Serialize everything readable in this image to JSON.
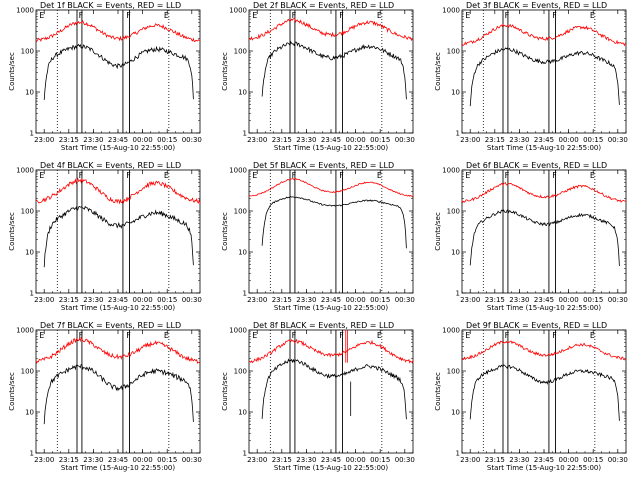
{
  "chart_data": {
    "type": "line",
    "yscale": "log",
    "ylim": [
      1,
      1000
    ],
    "ylabel": "Counts/sec",
    "xlabel": "Start Time (15-Aug-10 22:55:00)",
    "xlim_minutes": [
      0,
      100
    ],
    "x_ticks": [
      "23:00",
      "23:15",
      "23:30",
      "23:45",
      "00:00",
      "00:15",
      "00:30"
    ],
    "y_ticks": [
      "1",
      "10",
      "100",
      "1000"
    ],
    "series_colors": {
      "events": "#000000",
      "lld": "#ff0000"
    },
    "panels": [
      {
        "title": "Det 1f BLACK = Events, RED = LLD",
        "labels": [
          "E",
          "F",
          "F",
          "E"
        ],
        "events_start": 5,
        "events_end": 96,
        "ev_base": 60,
        "ev_peak1": 130,
        "ev_dip": 35,
        "ev_peak2": 110,
        "lld_base": 170,
        "lld_peak1": 500,
        "lld_dip": 160,
        "lld_peak2": 420,
        "noise": 0.18,
        "dotted": [
          13,
          81
        ],
        "solid": [
          25,
          28,
          53,
          57
        ],
        "spike": null
      },
      {
        "title": "Det 2f BLACK = Events, RED = LLD",
        "labels": [
          "E",
          "F",
          "F",
          "E"
        ],
        "events_start": 8,
        "events_end": 96,
        "ev_base": 55,
        "ev_peak1": 150,
        "ev_dip": 55,
        "ev_peak2": 130,
        "lld_base": 190,
        "lld_peak1": 560,
        "lld_dip": 200,
        "lld_peak2": 500,
        "noise": 0.18,
        "dotted": [
          13,
          81
        ],
        "solid": [
          25,
          28,
          53,
          57
        ],
        "spike": null
      },
      {
        "title": "Det 3f BLACK = Events, RED = LLD",
        "labels": [
          "E",
          "F",
          "F",
          "E"
        ],
        "events_start": 5,
        "events_end": 96,
        "ev_base": 40,
        "ev_peak1": 110,
        "ev_dip": 45,
        "ev_peak2": 90,
        "lld_base": 140,
        "lld_peak1": 420,
        "lld_dip": 160,
        "lld_peak2": 380,
        "noise": 0.16,
        "dotted": [
          13,
          81
        ],
        "solid": [
          25,
          28,
          53,
          57
        ],
        "spike": null
      },
      {
        "title": "Det 4f BLACK = Events, RED = LLD",
        "labels": [
          "E",
          "F",
          "F",
          "E"
        ],
        "events_start": 5,
        "events_end": 96,
        "ev_base": 40,
        "ev_peak1": 120,
        "ev_dip": 35,
        "ev_peak2": 90,
        "lld_base": 160,
        "lld_peak1": 560,
        "lld_dip": 130,
        "lld_peak2": 480,
        "noise": 0.2,
        "dotted": [
          13,
          81
        ],
        "solid": [
          25,
          28,
          53,
          57
        ],
        "spike": null
      },
      {
        "title": "Det 5f BLACK = Events, RED = LLD",
        "labels": [
          "E",
          "F",
          "F",
          "E"
        ],
        "events_start": 8,
        "events_end": 96,
        "ev_base": 120,
        "ev_peak1": 220,
        "ev_dip": 120,
        "ev_peak2": 180,
        "lld_base": 220,
        "lld_peak1": 600,
        "lld_dip": 240,
        "lld_peak2": 500,
        "noise": 0.06,
        "dotted": [
          13,
          81
        ],
        "solid": [
          25,
          28,
          53,
          57
        ],
        "spike": null
      },
      {
        "title": "Det 6f BLACK = Events, RED = LLD",
        "labels": [
          "E",
          "F",
          "F",
          "E"
        ],
        "events_start": 5,
        "events_end": 96,
        "ev_base": 40,
        "ev_peak1": 100,
        "ev_dip": 40,
        "ev_peak2": 80,
        "lld_base": 160,
        "lld_peak1": 460,
        "lld_dip": 180,
        "lld_peak2": 400,
        "noise": 0.12,
        "dotted": [
          13,
          81
        ],
        "solid": [
          25,
          28,
          53,
          57
        ],
        "spike": null
      },
      {
        "title": "Det 7f BLACK = Events, RED = LLD",
        "labels": [
          "E",
          "F",
          "F",
          "E"
        ],
        "events_start": 5,
        "events_end": 96,
        "ev_base": 50,
        "ev_peak1": 130,
        "ev_dip": 30,
        "ev_peak2": 100,
        "lld_base": 160,
        "lld_peak1": 580,
        "lld_dip": 170,
        "lld_peak2": 470,
        "noise": 0.2,
        "dotted": [
          13,
          81
        ],
        "solid": [
          25,
          28,
          53,
          57
        ],
        "spike": null
      },
      {
        "title": "Det 8f BLACK = Events, RED = LLD",
        "labels": [
          "E",
          "F",
          "F",
          "E"
        ],
        "events_start": 8,
        "events_end": 96,
        "ev_base": 55,
        "ev_peak1": 180,
        "ev_dip": 60,
        "ev_peak2": 130,
        "lld_base": 160,
        "lld_peak1": 540,
        "lld_dip": 190,
        "lld_peak2": 500,
        "noise": 0.16,
        "dotted": [
          13,
          81
        ],
        "solid": [
          25,
          28,
          53,
          57
        ],
        "spike": 59
      },
      {
        "title": "Det 9f BLACK = Events, RED = LLD",
        "labels": [
          "E",
          "F",
          "F",
          "E"
        ],
        "events_start": 5,
        "events_end": 96,
        "ev_base": 60,
        "ev_peak1": 130,
        "ev_dip": 45,
        "ev_peak2": 100,
        "lld_base": 190,
        "lld_peak1": 520,
        "lld_dip": 200,
        "lld_peak2": 440,
        "noise": 0.14,
        "dotted": [
          13,
          81
        ],
        "solid": [
          25,
          28,
          53,
          57
        ],
        "spike": null
      }
    ]
  }
}
